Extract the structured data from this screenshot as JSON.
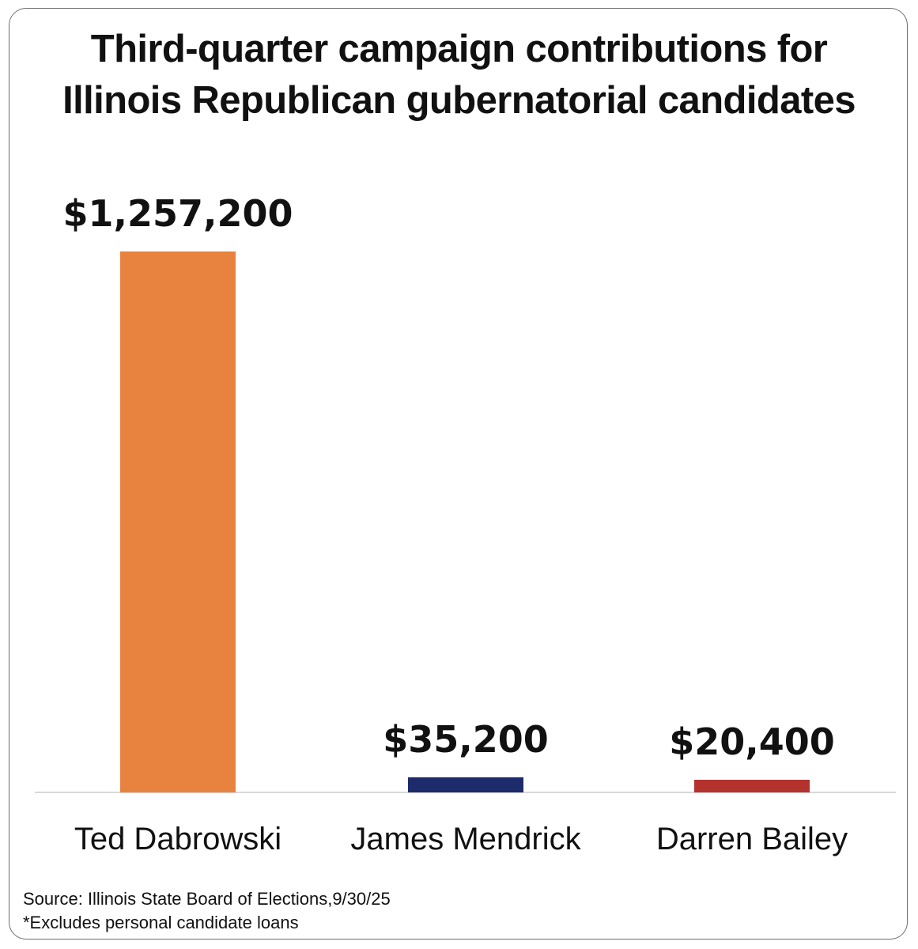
{
  "title_lines": [
    "Third-quarter campaign contributions for",
    "Illinois Republican gubernatorial candidates"
  ],
  "footer": {
    "source": "Source: Illinois State Board of Elections,9/30/25",
    "note": "*Excludes personal candidate loans"
  },
  "chart_data": {
    "type": "bar",
    "title": "Third-quarter campaign contributions for Illinois Republican gubernatorial candidates",
    "categories": [
      "Ted Dabrowski",
      "James Mendrick",
      "Darren Bailey"
    ],
    "values": [
      1257200,
      35200,
      20400
    ],
    "value_labels": [
      "$1,257,200",
      "$35,200",
      "$20,400"
    ],
    "colors": [
      "#e8823f",
      "#1d2a6b",
      "#b3322e"
    ],
    "xlabel": "",
    "ylabel": "",
    "ylim": [
      0,
      1257200
    ],
    "grid": false,
    "legend": "none"
  }
}
